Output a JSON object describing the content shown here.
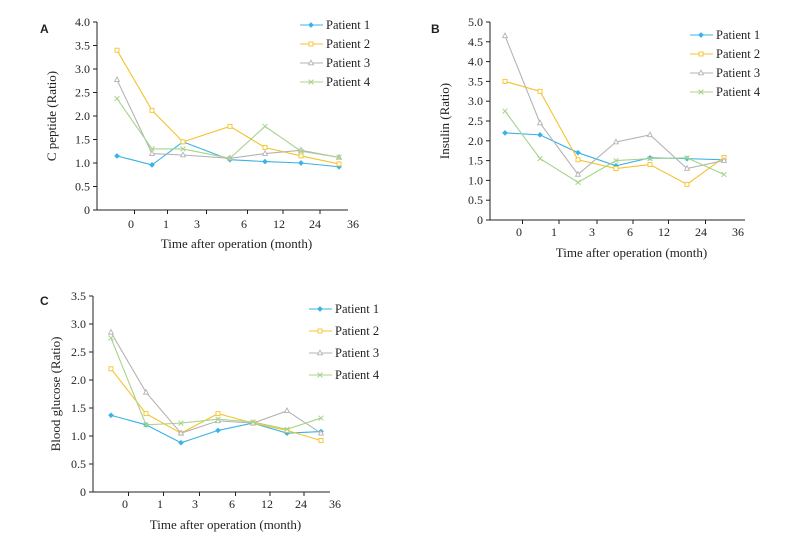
{
  "colors": {
    "patient1": "#39b3e6",
    "patient2": "#f5c32c",
    "patient3": "#b3b3b3",
    "patient4": "#a8d38a",
    "axis": "#231f20"
  },
  "chart_data": [
    {
      "type": "line",
      "panel": "A",
      "ylabel": "C peptide (Ratio)",
      "xlabel": "Time after operation (month)",
      "categories": [
        "0",
        "1",
        "3",
        "6",
        "12",
        "24",
        "36"
      ],
      "yticks": [
        "0",
        "0.5",
        "1.0",
        "1.5",
        "2.0",
        "2.5",
        "3.0",
        "3.5",
        "4.0"
      ],
      "ylim": [
        0,
        4.0
      ],
      "legend": "top-right",
      "series": [
        {
          "name": "Patient 1",
          "marker": "diamond",
          "values": [
            1.15,
            0.96,
            1.45,
            1.07,
            1.03,
            1.0,
            0.92
          ]
        },
        {
          "name": "Patient 2",
          "marker": "square",
          "values": [
            3.4,
            2.12,
            1.45,
            1.78,
            1.33,
            1.15,
            0.98
          ]
        },
        {
          "name": "Patient 3",
          "marker": "triangle",
          "values": [
            2.77,
            1.2,
            1.17,
            1.1,
            1.2,
            1.27,
            1.12
          ]
        },
        {
          "name": "Patient 4",
          "marker": "x",
          "values": [
            2.37,
            1.3,
            1.3,
            1.1,
            1.78,
            1.25,
            1.12
          ]
        }
      ]
    },
    {
      "type": "line",
      "panel": "B",
      "ylabel": "Insulin (Ratio)",
      "xlabel": "Time after operation (month)",
      "categories": [
        "0",
        "1",
        "3",
        "6",
        "12",
        "24",
        "36"
      ],
      "yticks": [
        "0",
        "0.5",
        "1.0",
        "1.5",
        "2.0",
        "2.5",
        "3.0",
        "3.5",
        "4.0",
        "4.5",
        "5.0"
      ],
      "ylim": [
        0,
        5.0
      ],
      "legend": "top-right",
      "series": [
        {
          "name": "Patient 1",
          "marker": "diamond",
          "values": [
            2.2,
            2.15,
            1.7,
            1.37,
            1.57,
            1.55,
            1.52
          ]
        },
        {
          "name": "Patient 2",
          "marker": "square",
          "values": [
            3.5,
            3.25,
            1.52,
            1.3,
            1.4,
            0.9,
            1.58
          ]
        },
        {
          "name": "Patient 3",
          "marker": "triangle",
          "values": [
            4.65,
            2.45,
            1.15,
            1.97,
            2.15,
            1.3,
            1.5
          ]
        },
        {
          "name": "Patient 4",
          "marker": "x",
          "values": [
            2.75,
            1.55,
            0.95,
            1.5,
            1.55,
            1.57,
            1.15
          ]
        }
      ]
    },
    {
      "type": "line",
      "panel": "C",
      "ylabel": "Blood glucose (Ratio)",
      "xlabel": "Time after operation (month)",
      "categories": [
        "0",
        "1",
        "3",
        "6",
        "12",
        "24",
        "36"
      ],
      "yticks": [
        "0",
        "0.5",
        "1.0",
        "1.5",
        "2.0",
        "2.5",
        "3.0",
        "3.5"
      ],
      "ylim": [
        0,
        3.5
      ],
      "legend": "top-right",
      "series": [
        {
          "name": "Patient 1",
          "marker": "diamond",
          "values": [
            1.37,
            1.2,
            0.88,
            1.1,
            1.23,
            1.05,
            1.08
          ]
        },
        {
          "name": "Patient 2",
          "marker": "square",
          "values": [
            2.2,
            1.4,
            1.05,
            1.4,
            1.23,
            1.1,
            0.92
          ]
        },
        {
          "name": "Patient 3",
          "marker": "triangle",
          "values": [
            2.85,
            1.78,
            1.05,
            1.27,
            1.23,
            1.45,
            1.05
          ]
        },
        {
          "name": "Patient 4",
          "marker": "x",
          "values": [
            2.75,
            1.2,
            1.23,
            1.3,
            1.25,
            1.12,
            1.32
          ]
        }
      ]
    }
  ]
}
